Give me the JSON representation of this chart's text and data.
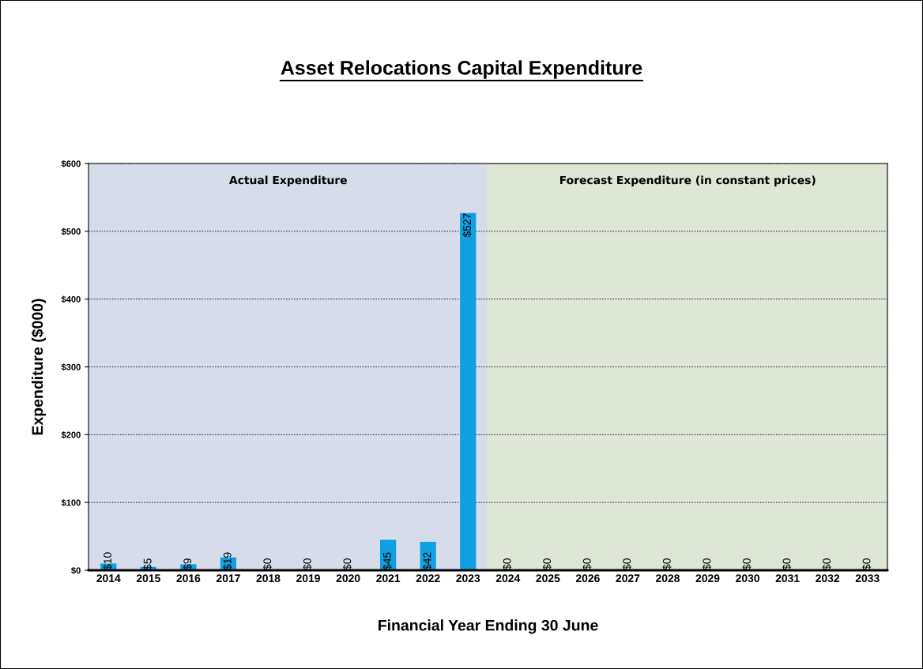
{
  "chart_data": {
    "type": "bar",
    "title": "Asset Relocations Capital Expenditure",
    "xlabel": "Financial Year Ending 30 June",
    "ylabel": "Expenditure ($000)",
    "x": [
      2014,
      2015,
      2016,
      2017,
      2018,
      2019,
      2020,
      2021,
      2022,
      2023,
      2024,
      2025,
      2026,
      2027,
      2028,
      2029,
      2030,
      2031,
      2032,
      2033
    ],
    "values": [
      10,
      5,
      9,
      19,
      0,
      0,
      0,
      45,
      42,
      527,
      0,
      0,
      0,
      0,
      0,
      0,
      0,
      0,
      0,
      0
    ],
    "value_labels": [
      "$10",
      "$5",
      "$9",
      "$19",
      "$0",
      "$0",
      "$0",
      "$45",
      "$42",
      "$527",
      "$0",
      "$0",
      "$0",
      "$0",
      "$0",
      "$0",
      "$0",
      "$0",
      "$0",
      "$0"
    ],
    "color": "#0ea0e0",
    "xlim": [
      2013.5,
      2033.5
    ],
    "xticks": [
      2014,
      2015,
      2016,
      2017,
      2018,
      2019,
      2020,
      2021,
      2022,
      2023,
      2024,
      2025,
      2026,
      2027,
      2028,
      2029,
      2030,
      2031,
      2032,
      2033
    ],
    "ylim": [
      0,
      600
    ],
    "yticks": [
      {
        "value": 0,
        "label": "$0"
      },
      {
        "value": 100,
        "label": "$100"
      },
      {
        "value": 200,
        "label": "$200"
      },
      {
        "value": 300,
        "label": "$300"
      },
      {
        "value": 400,
        "label": "$400"
      },
      {
        "value": 500,
        "label": "$500"
      },
      {
        "value": 600,
        "label": "$600"
      }
    ],
    "grid": "y",
    "bands": [
      {
        "axis": "x",
        "from": 2013.5,
        "to": 2023.5,
        "label": "Actual Expenditure",
        "color": "#d6dce9"
      },
      {
        "axis": "x",
        "from": 2023.5,
        "to": 2033.5,
        "label": "Forecast Expenditure (in constant prices)",
        "color": "#dee6d6"
      }
    ]
  }
}
